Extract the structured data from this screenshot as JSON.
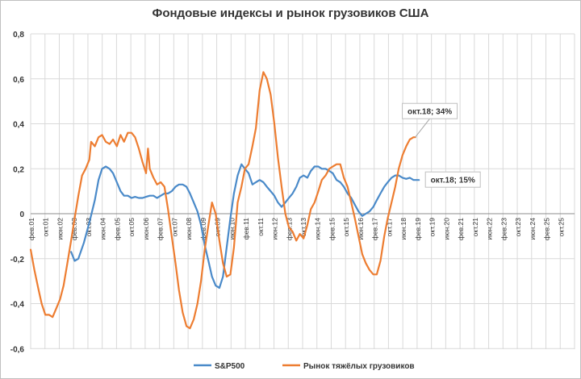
{
  "chart_data": {
    "type": "line",
    "title": "Фондовые индексы и рынок грузовиков США",
    "xlabel": "",
    "ylabel": "",
    "ylim": [
      -0.6,
      0.8
    ],
    "yticks": [
      "0,8",
      "0,6",
      "0,4",
      "0,2",
      "0",
      "-0,2",
      "-0,4",
      "-0,6"
    ],
    "yticks_values": [
      0.8,
      0.6,
      0.4,
      0.2,
      0,
      -0.2,
      -0.4,
      -0.6
    ],
    "xlim": [
      2001.08,
      2025.83
    ],
    "xticks": [
      "фев.01",
      "окт.01",
      "июн.02",
      "фев.03",
      "окт.03",
      "июн.04",
      "фев.05",
      "окт.05",
      "июн.06",
      "фев.07",
      "окт.07",
      "июн.08",
      "фев.09",
      "окт.09",
      "июн.10",
      "фев.11",
      "окт.11",
      "июн.12",
      "фев.13",
      "окт.13",
      "июн.14",
      "фев.15",
      "окт.15",
      "июн.16",
      "фев.17",
      "окт.17",
      "июн.18",
      "фев.19",
      "окт.19",
      "июн.20",
      "фев.21",
      "окт.21",
      "июн.22",
      "фев.23",
      "окт.23",
      "июн.24",
      "фев.25",
      "окт.25"
    ],
    "grid": true,
    "legend_position": "bottom",
    "series": [
      {
        "name": "S&P500",
        "color": "#4a8ac9",
        "points": [
          [
            2002.92,
            -0.17
          ],
          [
            2003.08,
            -0.21
          ],
          [
            2003.25,
            -0.2
          ],
          [
            2003.5,
            -0.13
          ],
          [
            2003.75,
            -0.04
          ],
          [
            2004.0,
            0.06
          ],
          [
            2004.17,
            0.15
          ],
          [
            2004.33,
            0.2
          ],
          [
            2004.5,
            0.21
          ],
          [
            2004.67,
            0.2
          ],
          [
            2004.83,
            0.18
          ],
          [
            2005.0,
            0.14
          ],
          [
            2005.17,
            0.1
          ],
          [
            2005.33,
            0.08
          ],
          [
            2005.5,
            0.08
          ],
          [
            2005.67,
            0.07
          ],
          [
            2005.83,
            0.075
          ],
          [
            2006.0,
            0.07
          ],
          [
            2006.17,
            0.07
          ],
          [
            2006.33,
            0.075
          ],
          [
            2006.5,
            0.08
          ],
          [
            2006.67,
            0.08
          ],
          [
            2006.83,
            0.07
          ],
          [
            2007.0,
            0.08
          ],
          [
            2007.17,
            0.09
          ],
          [
            2007.33,
            0.09
          ],
          [
            2007.5,
            0.1
          ],
          [
            2007.67,
            0.12
          ],
          [
            2007.83,
            0.13
          ],
          [
            2008.0,
            0.13
          ],
          [
            2008.17,
            0.12
          ],
          [
            2008.33,
            0.09
          ],
          [
            2008.5,
            0.05
          ],
          [
            2008.67,
            0.01
          ],
          [
            2008.83,
            -0.05
          ],
          [
            2009.0,
            -0.14
          ],
          [
            2009.17,
            -0.21
          ],
          [
            2009.33,
            -0.28
          ],
          [
            2009.5,
            -0.32
          ],
          [
            2009.67,
            -0.33
          ],
          [
            2009.83,
            -0.28
          ],
          [
            2010.0,
            -0.15
          ],
          [
            2010.17,
            -0.02
          ],
          [
            2010.33,
            0.09
          ],
          [
            2010.5,
            0.17
          ],
          [
            2010.67,
            0.22
          ],
          [
            2010.83,
            0.2
          ],
          [
            2011.0,
            0.18
          ],
          [
            2011.17,
            0.13
          ],
          [
            2011.33,
            0.14
          ],
          [
            2011.5,
            0.15
          ],
          [
            2011.67,
            0.14
          ],
          [
            2011.83,
            0.12
          ],
          [
            2012.0,
            0.1
          ],
          [
            2012.17,
            0.08
          ],
          [
            2012.33,
            0.05
          ],
          [
            2012.5,
            0.03
          ],
          [
            2012.67,
            0.05
          ],
          [
            2012.83,
            0.07
          ],
          [
            2013.0,
            0.09
          ],
          [
            2013.17,
            0.12
          ],
          [
            2013.33,
            0.16
          ],
          [
            2013.5,
            0.17
          ],
          [
            2013.67,
            0.16
          ],
          [
            2013.83,
            0.19
          ],
          [
            2014.0,
            0.21
          ],
          [
            2014.17,
            0.21
          ],
          [
            2014.33,
            0.2
          ],
          [
            2014.5,
            0.2
          ],
          [
            2014.67,
            0.19
          ],
          [
            2014.83,
            0.18
          ],
          [
            2015.0,
            0.15
          ],
          [
            2015.17,
            0.14
          ],
          [
            2015.33,
            0.12
          ],
          [
            2015.5,
            0.09
          ],
          [
            2015.67,
            0.07
          ],
          [
            2015.83,
            0.04
          ],
          [
            2016.0,
            0.01
          ],
          [
            2016.17,
            -0.01
          ],
          [
            2016.33,
            0.0
          ],
          [
            2016.5,
            0.01
          ],
          [
            2016.67,
            0.03
          ],
          [
            2016.83,
            0.06
          ],
          [
            2017.0,
            0.09
          ],
          [
            2017.17,
            0.12
          ],
          [
            2017.33,
            0.14
          ],
          [
            2017.5,
            0.16
          ],
          [
            2017.67,
            0.17
          ],
          [
            2017.83,
            0.17
          ],
          [
            2018.0,
            0.16
          ],
          [
            2018.17,
            0.155
          ],
          [
            2018.33,
            0.16
          ],
          [
            2018.5,
            0.15
          ],
          [
            2018.67,
            0.15
          ],
          [
            2018.75,
            0.15
          ]
        ]
      },
      {
        "name": "Рынок тяжёлых грузовиков",
        "color": "#ed7d31",
        "points": [
          [
            2001.08,
            -0.16
          ],
          [
            2001.25,
            -0.25
          ],
          [
            2001.42,
            -0.33
          ],
          [
            2001.58,
            -0.4
          ],
          [
            2001.75,
            -0.45
          ],
          [
            2001.92,
            -0.45
          ],
          [
            2002.08,
            -0.46
          ],
          [
            2002.25,
            -0.42
          ],
          [
            2002.42,
            -0.38
          ],
          [
            2002.58,
            -0.32
          ],
          [
            2002.75,
            -0.22
          ],
          [
            2002.92,
            -0.12
          ],
          [
            2003.08,
            -0.02
          ],
          [
            2003.25,
            0.08
          ],
          [
            2003.42,
            0.17
          ],
          [
            2003.58,
            0.2
          ],
          [
            2003.75,
            0.24
          ],
          [
            2003.83,
            0.32
          ],
          [
            2004.0,
            0.3
          ],
          [
            2004.17,
            0.34
          ],
          [
            2004.33,
            0.35
          ],
          [
            2004.5,
            0.32
          ],
          [
            2004.67,
            0.31
          ],
          [
            2004.83,
            0.33
          ],
          [
            2005.0,
            0.3
          ],
          [
            2005.17,
            0.35
          ],
          [
            2005.33,
            0.32
          ],
          [
            2005.5,
            0.36
          ],
          [
            2005.67,
            0.36
          ],
          [
            2005.83,
            0.34
          ],
          [
            2006.0,
            0.29
          ],
          [
            2006.17,
            0.23
          ],
          [
            2006.33,
            0.18
          ],
          [
            2006.42,
            0.29
          ],
          [
            2006.5,
            0.2
          ],
          [
            2006.67,
            0.16
          ],
          [
            2006.83,
            0.13
          ],
          [
            2007.0,
            0.14
          ],
          [
            2007.17,
            0.12
          ],
          [
            2007.33,
            0.02
          ],
          [
            2007.5,
            -0.1
          ],
          [
            2007.67,
            -0.22
          ],
          [
            2007.83,
            -0.34
          ],
          [
            2008.0,
            -0.44
          ],
          [
            2008.17,
            -0.5
          ],
          [
            2008.33,
            -0.51
          ],
          [
            2008.5,
            -0.47
          ],
          [
            2008.67,
            -0.4
          ],
          [
            2008.83,
            -0.3
          ],
          [
            2009.0,
            -0.16
          ],
          [
            2009.17,
            -0.05
          ],
          [
            2009.33,
            0.05
          ],
          [
            2009.5,
            0.0
          ],
          [
            2009.67,
            -0.12
          ],
          [
            2009.83,
            -0.22
          ],
          [
            2010.0,
            -0.28
          ],
          [
            2010.17,
            -0.27
          ],
          [
            2010.33,
            -0.15
          ],
          [
            2010.5,
            0.05
          ],
          [
            2010.67,
            0.12
          ],
          [
            2010.83,
            0.2
          ],
          [
            2011.0,
            0.22
          ],
          [
            2011.17,
            0.3
          ],
          [
            2011.33,
            0.38
          ],
          [
            2011.5,
            0.55
          ],
          [
            2011.67,
            0.63
          ],
          [
            2011.83,
            0.6
          ],
          [
            2012.0,
            0.53
          ],
          [
            2012.17,
            0.4
          ],
          [
            2012.33,
            0.25
          ],
          [
            2012.5,
            0.12
          ],
          [
            2012.67,
            0.0
          ],
          [
            2012.83,
            -0.06
          ],
          [
            2013.0,
            -0.08
          ],
          [
            2013.17,
            -0.12
          ],
          [
            2013.33,
            -0.09
          ],
          [
            2013.5,
            -0.11
          ],
          [
            2013.67,
            -0.05
          ],
          [
            2013.83,
            0.02
          ],
          [
            2014.0,
            0.05
          ],
          [
            2014.17,
            0.1
          ],
          [
            2014.33,
            0.15
          ],
          [
            2014.5,
            0.17
          ],
          [
            2014.67,
            0.2
          ],
          [
            2014.83,
            0.21
          ],
          [
            2015.0,
            0.22
          ],
          [
            2015.17,
            0.22
          ],
          [
            2015.33,
            0.16
          ],
          [
            2015.5,
            0.12
          ],
          [
            2015.67,
            0.05
          ],
          [
            2015.83,
            -0.02
          ],
          [
            2016.0,
            -0.1
          ],
          [
            2016.17,
            -0.18
          ],
          [
            2016.33,
            -0.22
          ],
          [
            2016.5,
            -0.25
          ],
          [
            2016.67,
            -0.27
          ],
          [
            2016.83,
            -0.27
          ],
          [
            2017.0,
            -0.21
          ],
          [
            2017.17,
            -0.1
          ],
          [
            2017.33,
            -0.02
          ],
          [
            2017.5,
            0.05
          ],
          [
            2017.67,
            0.12
          ],
          [
            2017.83,
            0.2
          ],
          [
            2018.0,
            0.26
          ],
          [
            2018.17,
            0.3
          ],
          [
            2018.33,
            0.33
          ],
          [
            2018.5,
            0.34
          ],
          [
            2018.58,
            0.34
          ]
        ]
      }
    ],
    "annotations": [
      {
        "text": "окт.18; 34%",
        "x": 2018.58,
        "y": 0.34,
        "series": 1
      },
      {
        "text": "окт.18; 15%",
        "x": 2018.75,
        "y": 0.15,
        "series": 0
      }
    ]
  }
}
